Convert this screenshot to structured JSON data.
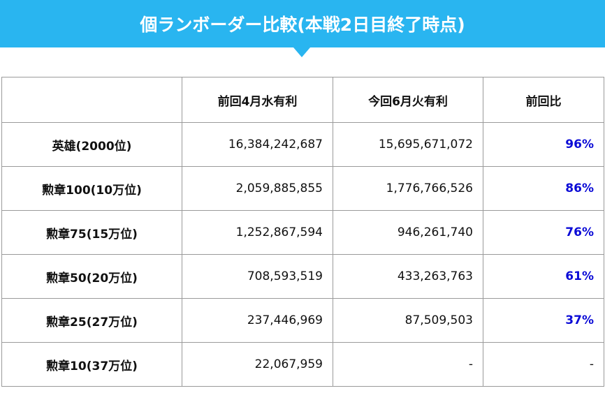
{
  "header": {
    "title": "個ランボーダー比較(本戦2日目終了時点)"
  },
  "table": {
    "headers": [
      "前回4月水有利",
      "今回6月火有利",
      "前回比"
    ],
    "rows": [
      [
        "英雄(2000位)",
        "16,384,242,687",
        "15,695,671,072",
        "96%"
      ],
      [
        "勲章100(10万位)",
        "2,059,885,855",
        "1,776,766,526",
        "86%"
      ],
      [
        "勲章75(15万位)",
        "1,252,867,594",
        "946,261,740",
        "76%"
      ],
      [
        "勲章50(20万位)",
        "708,593,519",
        "433,263,763",
        "61%"
      ],
      [
        "勲章25(27万位)",
        "237,446,969",
        "87,509,503",
        "37%"
      ],
      [
        "勲章10(37万位)",
        "22,067,959",
        "-",
        "-"
      ]
    ]
  }
}
